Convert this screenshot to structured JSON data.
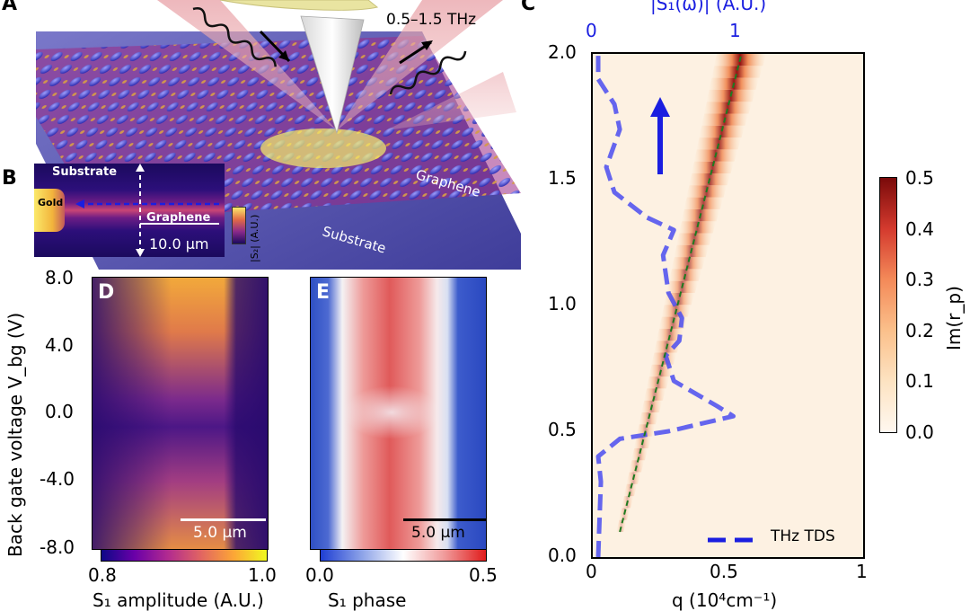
{
  "panel_labels": {
    "a": "A",
    "b": "B",
    "c": "C",
    "d": "D",
    "e": "E"
  },
  "panel_a": {
    "frequency_label": "0.5–1.5 THz",
    "graphene_label": "Graphene",
    "substrate_label": "Substrate"
  },
  "panel_b": {
    "substrate_label": "Substrate",
    "gold_label": "Gold",
    "graphene_label": "Graphene",
    "scalebar_label": "10.0 µm",
    "colorbar_label": "|S₂| (A.U.)"
  },
  "panel_d": {
    "ylabel": "Back gate voltage V_bg (V)",
    "yticks": [
      "8.0",
      "4.0",
      "0.0",
      "-4.0",
      "-8.0"
    ],
    "scalebar_label": "5.0 µm",
    "colorbar_ticks": [
      "0.8",
      "1.0"
    ],
    "colorbar_label": "S₁ amplitude (A.U.)"
  },
  "panel_e": {
    "scalebar_label": "5.0 µm",
    "colorbar_ticks": [
      "0.0",
      "0.5"
    ],
    "colorbar_label": "S₁ phase"
  },
  "panel_c": {
    "top_axis_label": "|S₁(ω)| (A.U.)",
    "top_ticks": [
      "0",
      "1"
    ],
    "yticks": [
      "2.0",
      "1.5",
      "1.0",
      "0.5",
      "0.0"
    ],
    "xticks": [
      "0",
      "0.5",
      "1"
    ],
    "xlabel": "q (10⁴cm⁻¹)",
    "legend": "THz TDS",
    "colorbar_ticks": [
      "0.5",
      "0.4",
      "0.3",
      "0.2",
      "0.1",
      "0.0"
    ],
    "colorbar_label": "Im(r_p)"
  },
  "chart_data": [
    {
      "type": "line",
      "title": "",
      "xlabel": "q (10⁴cm⁻¹)",
      "ylabel": "",
      "xlim": [
        0,
        1
      ],
      "ylim": [
        0,
        2
      ],
      "series": [
        {
          "name": "THz TDS",
          "top_axis_values": true,
          "points": [
            [
              0.02,
              0.0
            ],
            [
              0.03,
              0.3
            ],
            [
              0.02,
              0.4
            ],
            [
              0.1,
              0.47
            ],
            [
              0.28,
              0.5
            ],
            [
              0.52,
              0.56
            ],
            [
              0.46,
              0.6
            ],
            [
              0.3,
              0.7
            ],
            [
              0.27,
              0.8
            ],
            [
              0.32,
              0.86
            ],
            [
              0.33,
              0.95
            ],
            [
              0.28,
              1.05
            ],
            [
              0.26,
              1.2
            ],
            [
              0.3,
              1.3
            ],
            [
              0.2,
              1.35
            ],
            [
              0.08,
              1.45
            ],
            [
              0.05,
              1.55
            ],
            [
              0.1,
              1.7
            ],
            [
              0.08,
              1.8
            ],
            [
              0.02,
              1.9
            ],
            [
              0.02,
              2.0
            ]
          ]
        },
        {
          "points": [
            [
              0.1,
              0.1
            ],
            [
              0.55,
              2.0
            ]
          ]
        }
      ]
    }
  ]
}
